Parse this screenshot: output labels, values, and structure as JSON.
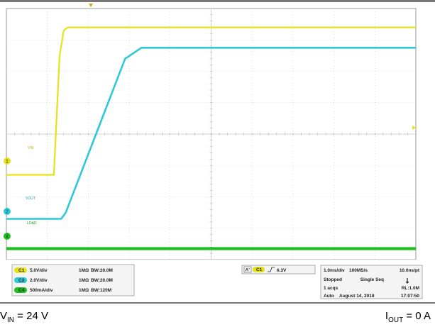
{
  "chart_data": {
    "type": "line",
    "x_divisions": 10,
    "y_divisions": 8,
    "channels": [
      {
        "id": "1",
        "name": "VIN",
        "color": "#e6e21a",
        "scale": "5.0V/div",
        "coupling": "1MΩ",
        "bw": "BW:20.0M",
        "trace_label": "VIN"
      },
      {
        "id": "2",
        "name": "VOUT",
        "color": "#2ec9d6",
        "scale": "2.0V/div",
        "coupling": "1MΩ",
        "bw": "BW:20.0M",
        "trace_label": "VOUT"
      },
      {
        "id": "4",
        "name": "LOAD",
        "color": "#1fbf1f",
        "scale": "500mA/div",
        "coupling": "1MΩ",
        "bw": "BW:120M",
        "trace_label": "LOAD"
      }
    ],
    "series": [
      {
        "name": "VIN",
        "x": [
          0,
          1.16,
          1.3,
          1.4,
          1.5,
          10
        ],
        "y": [
          -1.3,
          -1.3,
          2.5,
          3.3,
          3.4,
          3.4
        ]
      },
      {
        "name": "VOUT",
        "x": [
          0,
          1.34,
          1.45,
          2.9,
          3.3,
          10
        ],
        "y": [
          -2.7,
          -2.7,
          -2.5,
          2.4,
          2.75,
          2.75
        ]
      },
      {
        "name": "LOAD",
        "x": [
          0,
          10
        ],
        "y": [
          -3.65,
          -3.65
        ]
      }
    ],
    "trigger": {
      "source": "C1",
      "slope": "rising",
      "level": "6.3V"
    },
    "timebase": {
      "scale": "1.0ms/div",
      "sample_rate": "100MS/s",
      "resolution": "10.0ns/pt"
    },
    "acquisition": {
      "state": "Stopped",
      "mode": "Single Seq",
      "count": "1 acqs",
      "record_length": "RL:1.0M",
      "trigger_mode": "Auto",
      "date": "August 14, 2018",
      "time": "17:07:50"
    }
  },
  "captions": {
    "left": "V",
    "left_sub": "IN",
    "left_rest": " = 24 V",
    "right": "I",
    "right_sub": "OUT",
    "right_rest": " = 0 A"
  },
  "trigger_badge": {
    "a": "A'",
    "ch": "C1"
  },
  "markers": {
    "ch1": "1",
    "ch2": "2",
    "ch4": "4"
  }
}
